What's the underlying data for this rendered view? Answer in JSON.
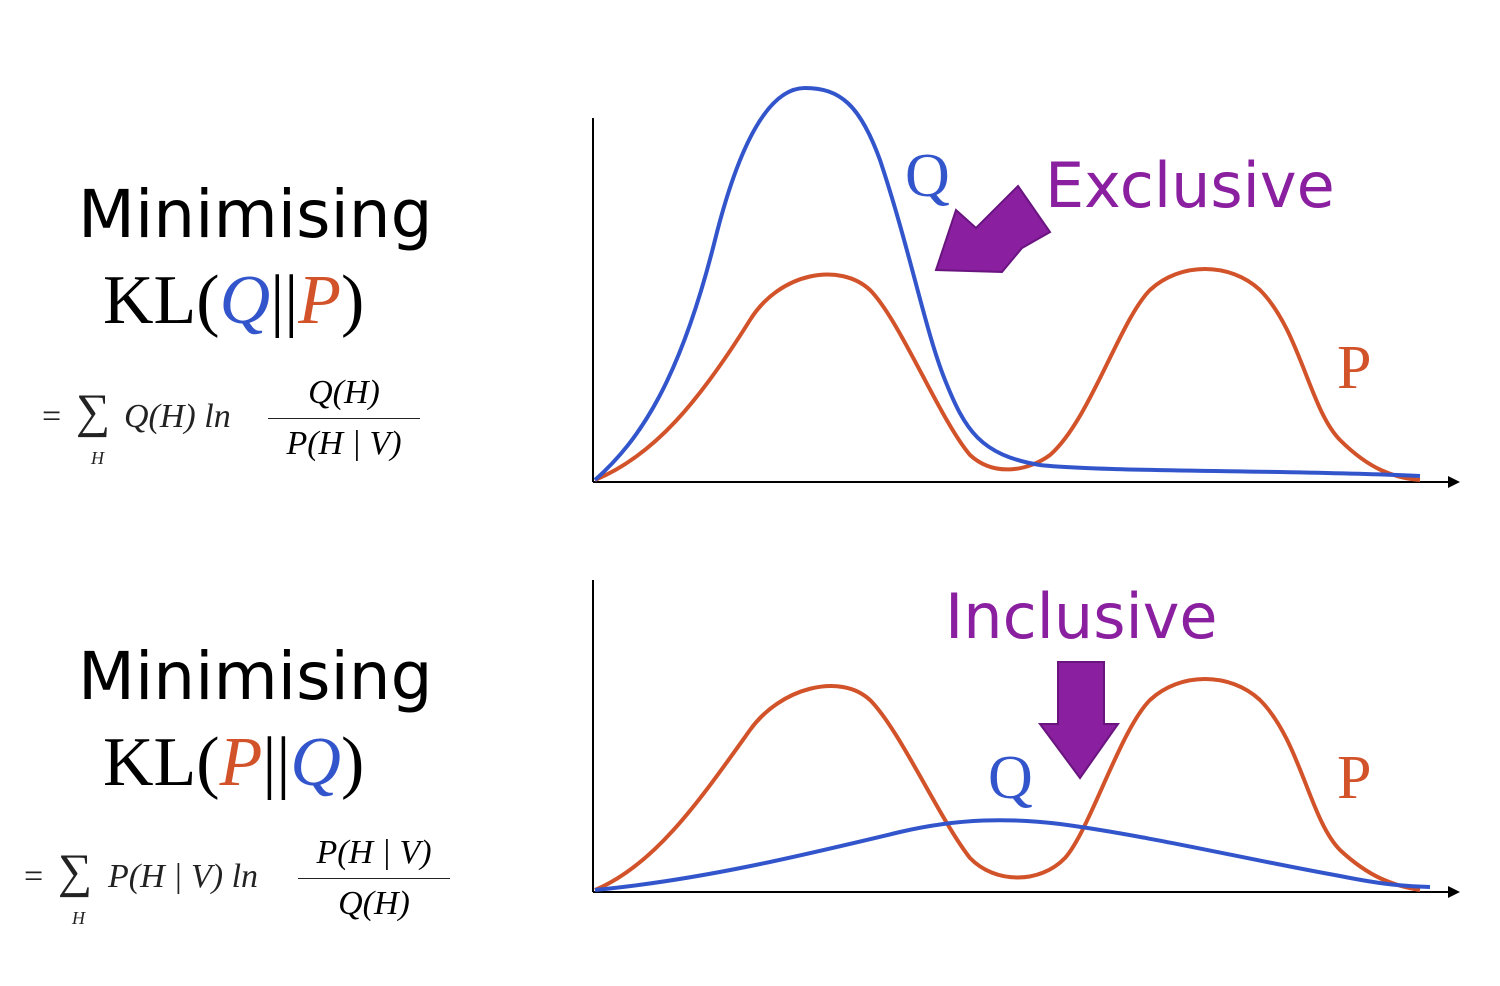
{
  "exclusive": {
    "heading": "Minimising",
    "kl_prefix": "KL(",
    "kl_first": "Q",
    "kl_sep": "||",
    "kl_second": "P",
    "kl_suffix": ")",
    "formula": {
      "equals": "=",
      "sum": "∑",
      "sum_sub": "H",
      "term": "Q(H) ln",
      "numerator": "Q(H)",
      "denominator": "P(H | V)"
    },
    "callout": "Exclusive",
    "q_label": "Q",
    "p_label": "P"
  },
  "inclusive": {
    "heading": "Minimising",
    "kl_prefix": "KL(",
    "kl_first": "P",
    "kl_sep": "||",
    "kl_second": "Q",
    "kl_suffix": ")",
    "formula": {
      "equals": "=",
      "sum": "∑",
      "sum_sub": "H",
      "term": "P(H | V) ln",
      "numerator": "P(H | V)",
      "denominator": "Q(H)"
    },
    "callout": "Inclusive",
    "q_label": "Q",
    "p_label": "P"
  },
  "colors": {
    "q": "#3355cc",
    "p": "#d2522a",
    "callout": "#8a1fa0"
  }
}
